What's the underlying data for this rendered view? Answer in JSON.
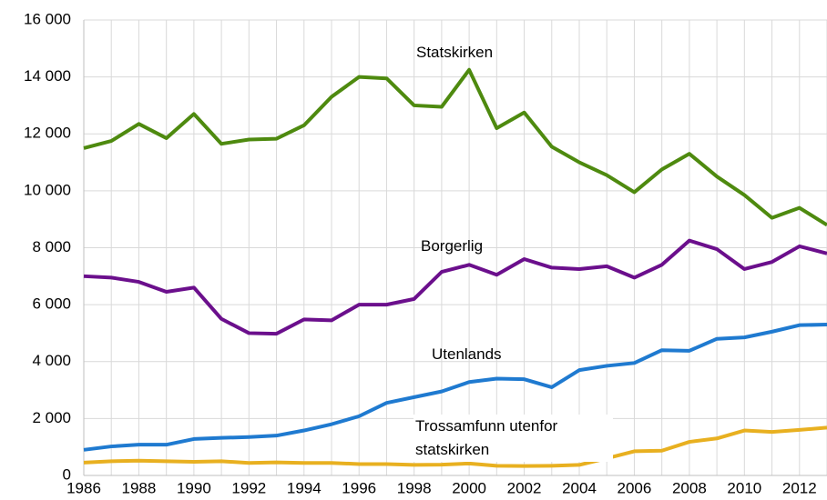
{
  "chart_data": {
    "type": "line",
    "x": [
      1986,
      1987,
      1988,
      1989,
      1990,
      1991,
      1992,
      1993,
      1994,
      1995,
      1996,
      1997,
      1998,
      1999,
      2000,
      2001,
      2002,
      2003,
      2004,
      2005,
      2006,
      2007,
      2008,
      2009,
      2010,
      2011,
      2012,
      2013
    ],
    "xlim": [
      1986,
      2013
    ],
    "xticks": [
      1986,
      1988,
      1990,
      1992,
      1994,
      1996,
      1998,
      2000,
      2002,
      2004,
      2006,
      2008,
      2010,
      2012
    ],
    "ylim": [
      0,
      16000
    ],
    "yticks": [
      0,
      {
        "value": 2000,
        "label": "2 000"
      },
      {
        "value": 4000,
        "label": "4 000"
      },
      {
        "value": 6000,
        "label": "6 000"
      },
      {
        "value": 8000,
        "label": "8 000"
      },
      {
        "value": 10000,
        "label": "10 000"
      },
      {
        "value": 12000,
        "label": "12 000"
      },
      {
        "value": 14000,
        "label": "14 000"
      },
      {
        "value": 16000,
        "label": "16 000"
      }
    ],
    "grid": true,
    "series": [
      {
        "name": "Statskirken",
        "color": "#4e8a0f",
        "values": [
          11500,
          11750,
          12350,
          11850,
          12700,
          11650,
          11800,
          11830,
          12300,
          13300,
          14000,
          13950,
          13000,
          12950,
          14250,
          12200,
          12750,
          11550,
          11000,
          10550,
          9950,
          10750,
          11300,
          10500,
          9850,
          9050,
          9400,
          8800
        ]
      },
      {
        "name": "Borgerlig",
        "color": "#6b0f8c",
        "values": [
          7000,
          6950,
          6800,
          6450,
          6600,
          5500,
          5000,
          4980,
          5480,
          5450,
          6000,
          6000,
          6200,
          7150,
          7400,
          7050,
          7600,
          7300,
          7250,
          7350,
          6950,
          7400,
          8250,
          7950,
          7250,
          7500,
          8050,
          7800
        ]
      },
      {
        "name": "Utenlands",
        "color": "#1f7ad0",
        "values": [
          900,
          1020,
          1080,
          1080,
          1280,
          1320,
          1350,
          1400,
          1580,
          1800,
          2080,
          2550,
          2750,
          2950,
          3280,
          3400,
          3380,
          3100,
          3700,
          3850,
          3950,
          4400,
          4380,
          4800,
          4850,
          5050,
          5280,
          5300
        ]
      },
      {
        "name": "Trossamfunn utenfor statskirken",
        "color": "#e8b020",
        "values": [
          450,
          500,
          520,
          500,
          480,
          500,
          440,
          460,
          440,
          440,
          400,
          400,
          370,
          380,
          420,
          340,
          330,
          340,
          370,
          600,
          850,
          870,
          1180,
          1300,
          1580,
          1530,
          1600,
          1680
        ]
      }
    ]
  }
}
